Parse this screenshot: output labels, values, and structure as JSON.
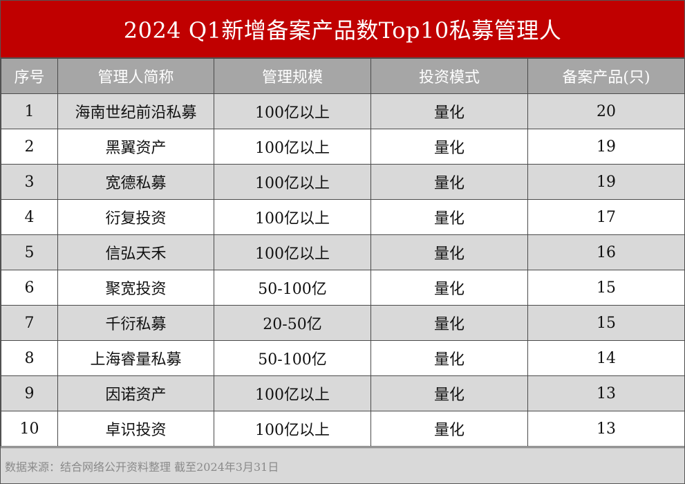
{
  "title": "2024 Q1新增备案产品数Top10私募管理人",
  "columns": [
    "序号",
    "管理人简称",
    "管理规模",
    "投资模式",
    "备案产品(只)"
  ],
  "rows": [
    {
      "no": "1",
      "name": "海南世纪前沿私募",
      "scale": "100亿以上",
      "mode": "量化",
      "count": "20"
    },
    {
      "no": "2",
      "name": "黑翼资产",
      "scale": "100亿以上",
      "mode": "量化",
      "count": "19"
    },
    {
      "no": "3",
      "name": "宽德私募",
      "scale": "100亿以上",
      "mode": "量化",
      "count": "19"
    },
    {
      "no": "4",
      "name": "衍复投资",
      "scale": "100亿以上",
      "mode": "量化",
      "count": "17"
    },
    {
      "no": "5",
      "name": "信弘天禾",
      "scale": "100亿以上",
      "mode": "量化",
      "count": "16"
    },
    {
      "no": "6",
      "name": "聚宽投资",
      "scale": "50-100亿",
      "mode": "量化",
      "count": "15"
    },
    {
      "no": "7",
      "name": "千衍私募",
      "scale": "20-50亿",
      "mode": "量化",
      "count": "15"
    },
    {
      "no": "8",
      "name": "上海睿量私募",
      "scale": "50-100亿",
      "mode": "量化",
      "count": "14"
    },
    {
      "no": "9",
      "name": "因诺资产",
      "scale": "100亿以上",
      "mode": "量化",
      "count": "13"
    },
    {
      "no": "10",
      "name": "卓识投资",
      "scale": "100亿以上",
      "mode": "量化",
      "count": "13"
    }
  ],
  "footer": "数据来源：结合网络公开资料整理 截至2024年3月31日",
  "colors": {
    "title_bg": "#c00000",
    "header_bg": "#a6a6a6",
    "stripe": "#d9d9d9"
  }
}
